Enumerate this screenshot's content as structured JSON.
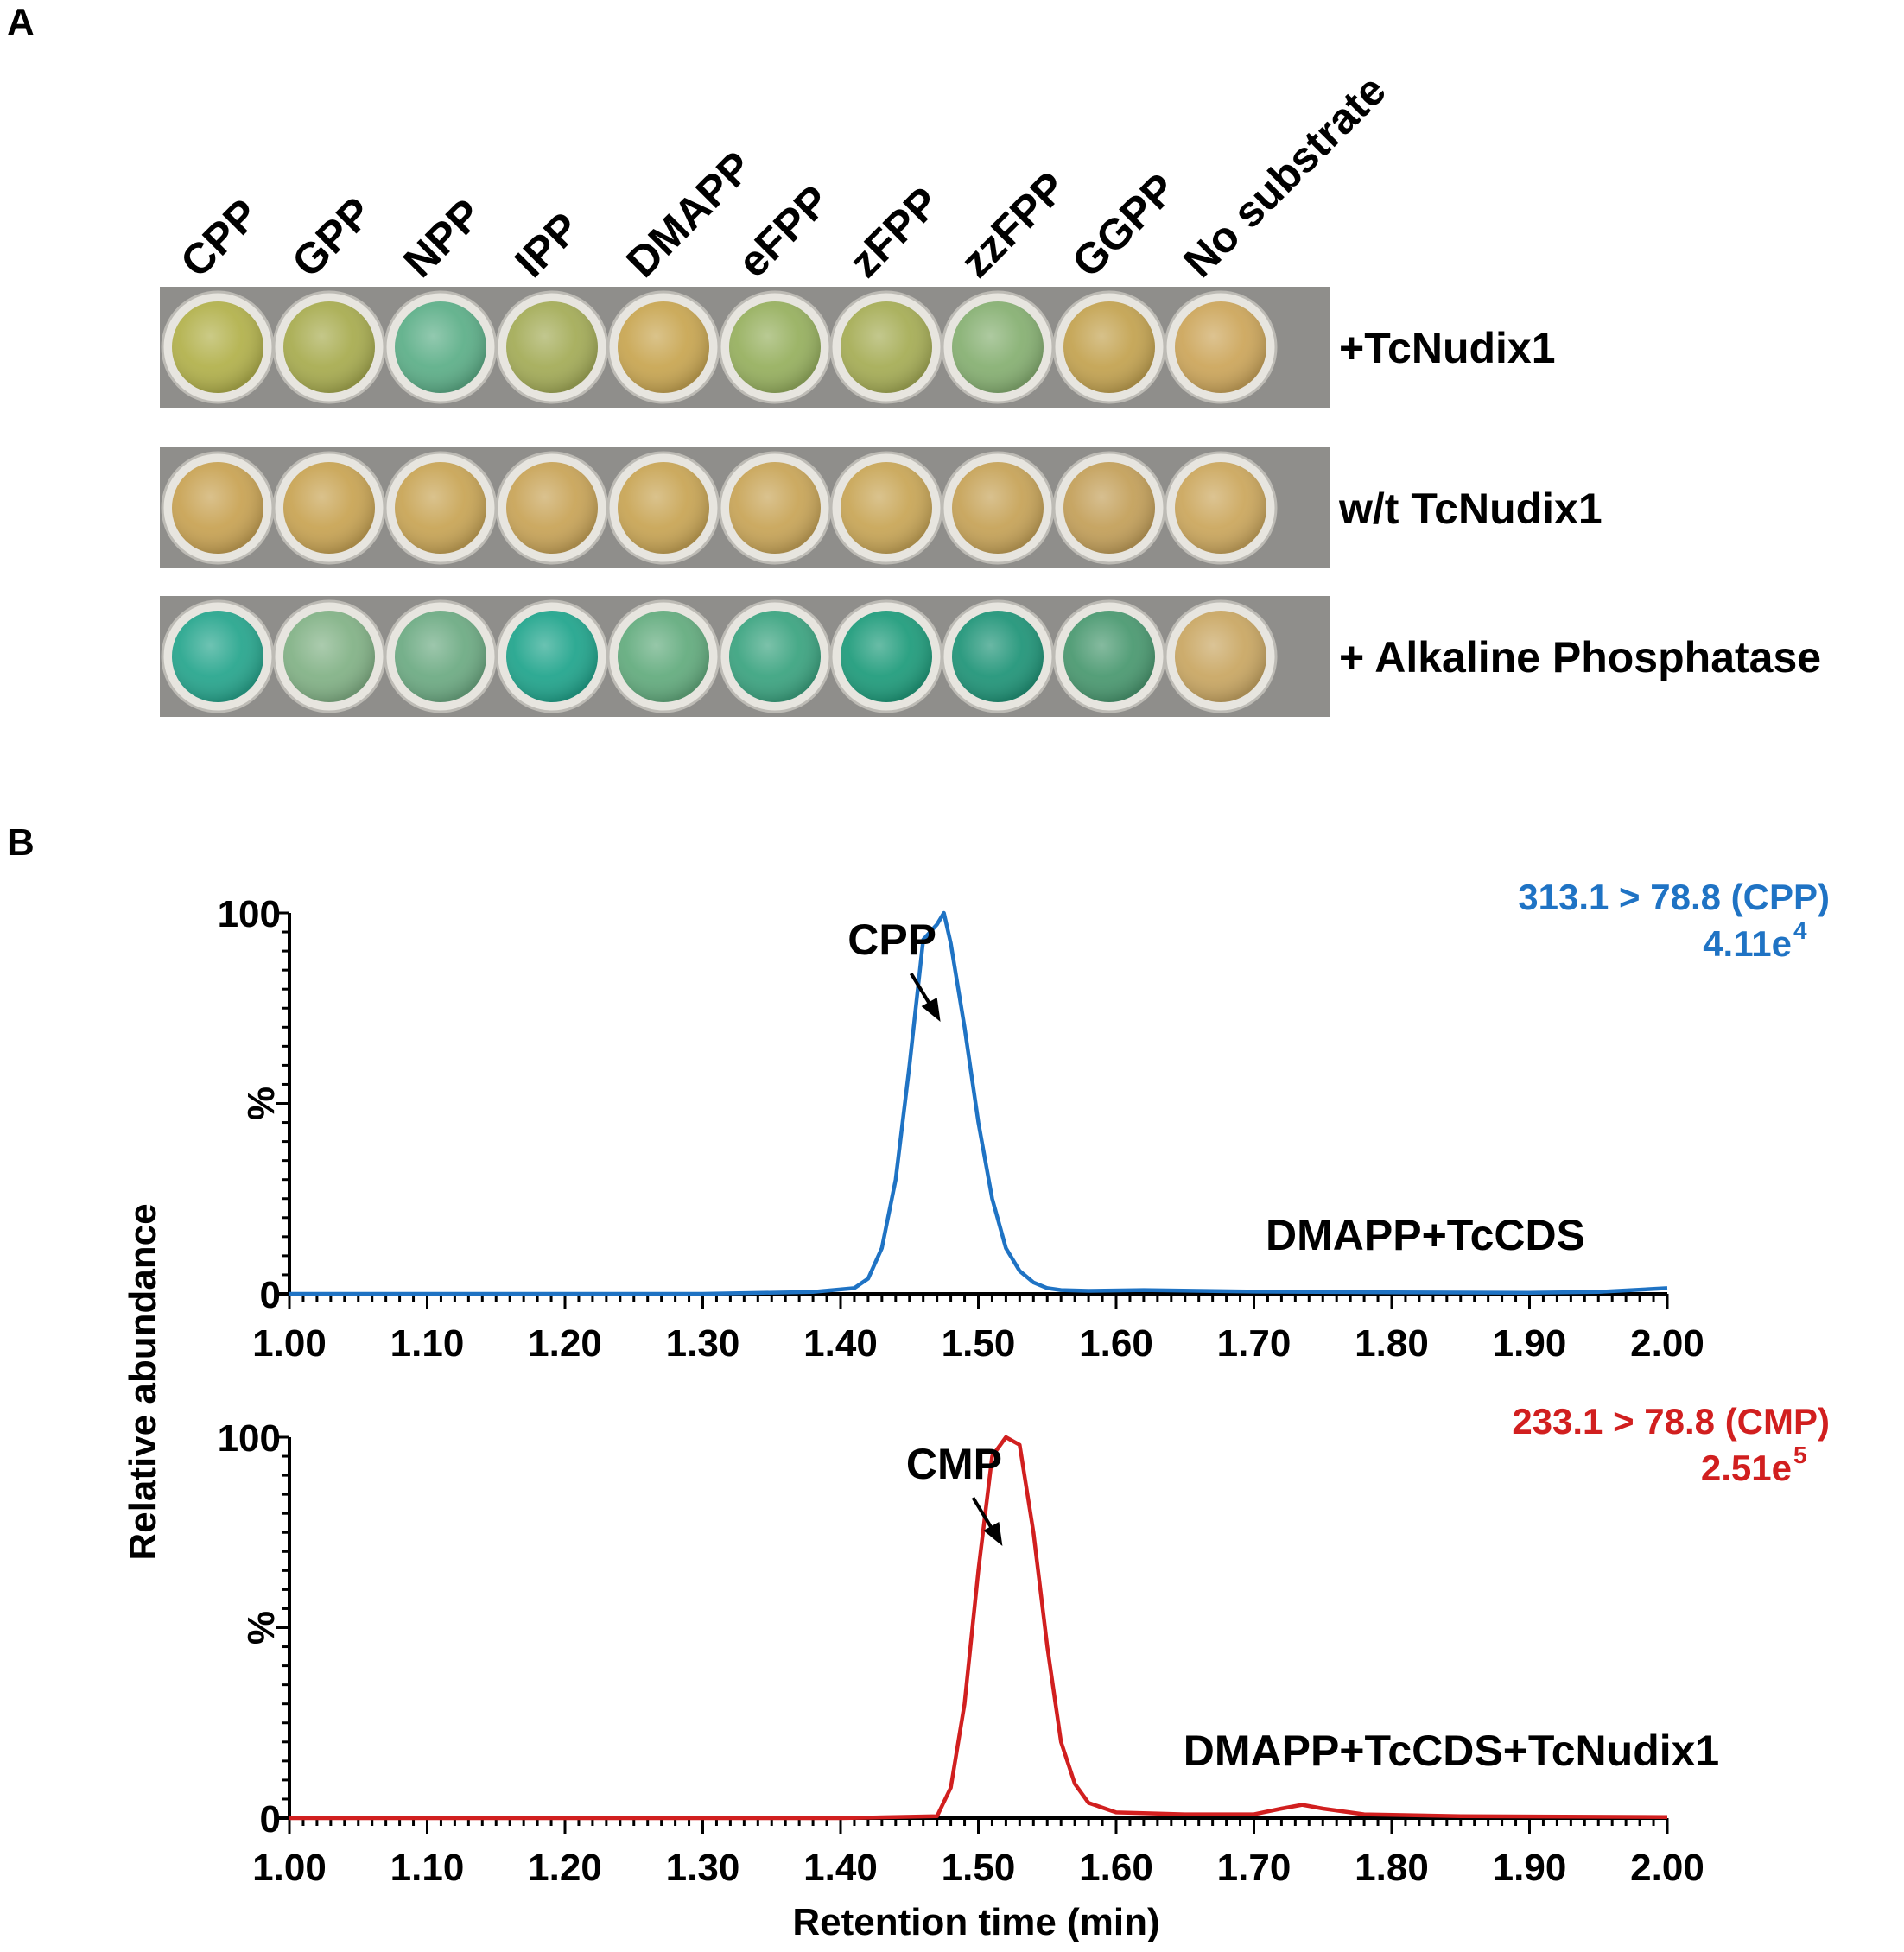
{
  "panelA": {
    "label": "A",
    "columns": [
      "CPP",
      "GPP",
      "NPP",
      "IPP",
      "DMAPP",
      "eFPP",
      "zFPP",
      "zzFPP",
      "GGPP",
      "No substrate"
    ],
    "rows": [
      {
        "label": "+TcNudix1",
        "colors": [
          "#b3b24e",
          "#a9ad52",
          "#5fb08a",
          "#a5ad5a",
          "#c9a754",
          "#98b161",
          "#a7ae58",
          "#88b174",
          "#c4a453",
          "#cda75d"
        ]
      },
      {
        "label": "w/t TcNudix1",
        "colors": [
          "#c9a456",
          "#c9a556",
          "#c9a658",
          "#c9a55a",
          "#c9a657",
          "#c9a65a",
          "#c9a759",
          "#c7a45a",
          "#c4a15c",
          "#cca85f"
        ]
      },
      {
        "label": "+ Alkaline Phosphatase",
        "colors": [
          "#2aa78f",
          "#84b388",
          "#6fac85",
          "#24a68e",
          "#65ad80",
          "#3ea582",
          "#229d7d",
          "#23967a",
          "#4c9a72",
          "#caa865"
        ]
      }
    ]
  },
  "panelB": {
    "label": "B",
    "ylabel": "Relative abundance",
    "xlabel": "Retention time (min)"
  },
  "chart_data": [
    {
      "type": "line",
      "series_label": "DMAPP+TcCDS",
      "transition": "313.1 > 78.8 (CPP)",
      "intensity_base": "4.11e",
      "intensity_exp": "4",
      "peak_label": "CPP",
      "peak_x": 1.475,
      "color": "#1f73c4",
      "ylabel": "%",
      "xlim": [
        1.0,
        2.0
      ],
      "ylim": [
        0,
        100
      ],
      "xticks": [
        "1.00",
        "1.10",
        "1.20",
        "1.30",
        "1.40",
        "1.50",
        "1.60",
        "1.70",
        "1.80",
        "1.90",
        "2.00"
      ],
      "yticks": [
        "0",
        "100"
      ],
      "x": [
        1.0,
        1.1,
        1.2,
        1.3,
        1.38,
        1.41,
        1.42,
        1.43,
        1.44,
        1.45,
        1.46,
        1.47,
        1.475,
        1.48,
        1.49,
        1.5,
        1.51,
        1.52,
        1.53,
        1.54,
        1.55,
        1.56,
        1.58,
        1.62,
        1.66,
        1.7,
        1.8,
        1.9,
        1.95,
        2.0
      ],
      "y": [
        0,
        0,
        0,
        0,
        0.5,
        1.5,
        4,
        12,
        30,
        60,
        93,
        97,
        100,
        92,
        70,
        45,
        25,
        12,
        6,
        3,
        1.5,
        1,
        0.8,
        1.0,
        0.8,
        0.6,
        0.4,
        0.3,
        0.5,
        1.5
      ]
    },
    {
      "type": "line",
      "series_label": "DMAPP+TcCDS+TcNudix1",
      "transition": "233.1 > 78.8 (CMP)",
      "intensity_base": "2.51e",
      "intensity_exp": "5",
      "peak_label": "CMP",
      "peak_x": 1.52,
      "color": "#d11f1f",
      "ylabel": "%",
      "xlim": [
        1.0,
        2.0
      ],
      "ylim": [
        0,
        100
      ],
      "xticks": [
        "1.00",
        "1.10",
        "1.20",
        "1.30",
        "1.40",
        "1.50",
        "1.60",
        "1.70",
        "1.80",
        "1.90",
        "2.00"
      ],
      "yticks": [
        "0",
        "100"
      ],
      "x": [
        1.0,
        1.2,
        1.4,
        1.47,
        1.48,
        1.49,
        1.5,
        1.51,
        1.52,
        1.53,
        1.54,
        1.55,
        1.56,
        1.57,
        1.58,
        1.6,
        1.65,
        1.7,
        1.72,
        1.735,
        1.75,
        1.78,
        1.85,
        2.0
      ],
      "y": [
        0,
        0,
        0,
        0.5,
        8,
        30,
        65,
        95,
        100,
        98,
        75,
        45,
        20,
        9,
        4,
        1.5,
        1,
        1,
        2.5,
        3.5,
        2.5,
        1,
        0.5,
        0.3
      ]
    }
  ]
}
